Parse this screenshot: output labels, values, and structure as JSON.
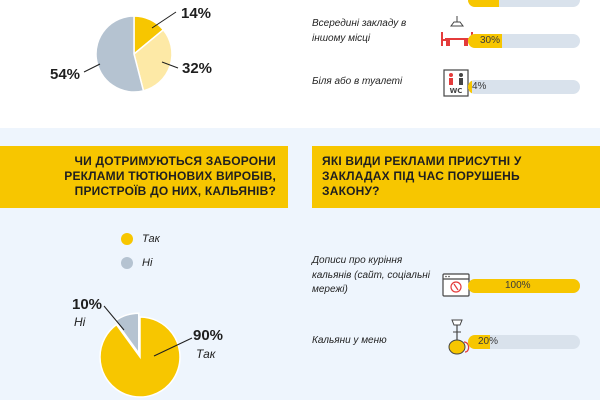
{
  "chart_data": [
    {
      "type": "pie",
      "slices": [
        {
          "value": 14,
          "label": "14%",
          "color": "#f7c600"
        },
        {
          "value": 32,
          "label": "32%",
          "color": "#fde9a6"
        },
        {
          "value": 54,
          "label": "54%",
          "color": "#b5c3d1"
        }
      ]
    },
    {
      "type": "bar",
      "orientation": "horizontal",
      "categories": [
        "",
        "Всередині закладу в іншому місці",
        "Біля або в туалеті"
      ],
      "values": [
        null,
        30,
        4
      ],
      "labels": [
        "",
        "30%",
        "4%"
      ]
    },
    {
      "type": "pie",
      "title": "ЧИ ДОТРИМУЮТЬСЯ ЗАБОРОНИ РЕКЛАМИ ТЮТЮНОВИХ ВИРОБІВ, ПРИСТРОЇВ ДО НИХ, КАЛЬЯНІВ?",
      "legend": [
        "Так",
        "Ні"
      ],
      "slices": [
        {
          "name": "Так",
          "value": 90,
          "label": "90%",
          "color": "#f7c600"
        },
        {
          "name": "Ні",
          "value": 10,
          "label": "10%",
          "color": "#b5c3d1"
        }
      ]
    },
    {
      "type": "bar",
      "orientation": "horizontal",
      "title": "ЯКІ ВИДИ РЕКЛАМИ ПРИСУТНІ У ЗАКЛАДАХ ПІД ЧАС ПОРУШЕНЬ ЗАКОНУ?",
      "categories": [
        "Дописи про куріння кальянів (сайт, соціальні мережі)",
        "Кальяни у меню"
      ],
      "values": [
        100,
        20
      ],
      "labels": [
        "100%",
        "20%"
      ]
    }
  ],
  "pie1": {
    "labels": [
      "14%",
      "32%",
      "54%"
    ]
  },
  "bars_top": {
    "items": [
      {
        "label_lines": [
          "Всередині закладу в",
          "іншому місці"
        ],
        "value": 30,
        "value_label": "30%",
        "icon": "restaurant-table-icon"
      },
      {
        "label_lines": [
          "Біля або в туалеті"
        ],
        "value": 4,
        "value_label": "4%",
        "icon": "wc-icon"
      }
    ],
    "partial_top_bar_value_visible": false
  },
  "question_left": {
    "lines": [
      "ЧИ ДОТРИМУЮТЬСЯ ЗАБОРОНИ",
      "РЕКЛАМИ ТЮТЮНОВИХ ВИРОБІВ,",
      "ПРИСТРОЇВ ДО НИХ, КАЛЬЯНІВ?"
    ]
  },
  "question_right": {
    "lines": [
      "ЯКІ ВИДИ РЕКЛАМИ ПРИСУТНІ У",
      "ЗАКЛАДАХ ПІД ЧАС ПОРУШЕНЬ",
      "ЗАКОНУ?"
    ]
  },
  "legend": {
    "yes": "Так",
    "no": "Ні"
  },
  "pie2": {
    "yes_pct": "90%",
    "yes_label": "Так",
    "no_pct": "10%",
    "no_label": "Ні"
  },
  "bars_bottom": {
    "items": [
      {
        "label_lines": [
          "Дописи про куріння",
          "кальянів (сайт, соціальні",
          "мережі)"
        ],
        "value": 100,
        "value_label": "100%",
        "icon": "browser-window-icon"
      },
      {
        "label_lines": [
          "Кальяни у меню"
        ],
        "value": 20,
        "value_label": "20%",
        "icon": "hookah-icon"
      }
    ]
  },
  "colors": {
    "yellow": "#f7c600",
    "light_yellow": "#fde9a6",
    "gray_blue": "#b5c3d1",
    "track": "#d9e2ec",
    "bg_blue": "#eef5fd"
  }
}
